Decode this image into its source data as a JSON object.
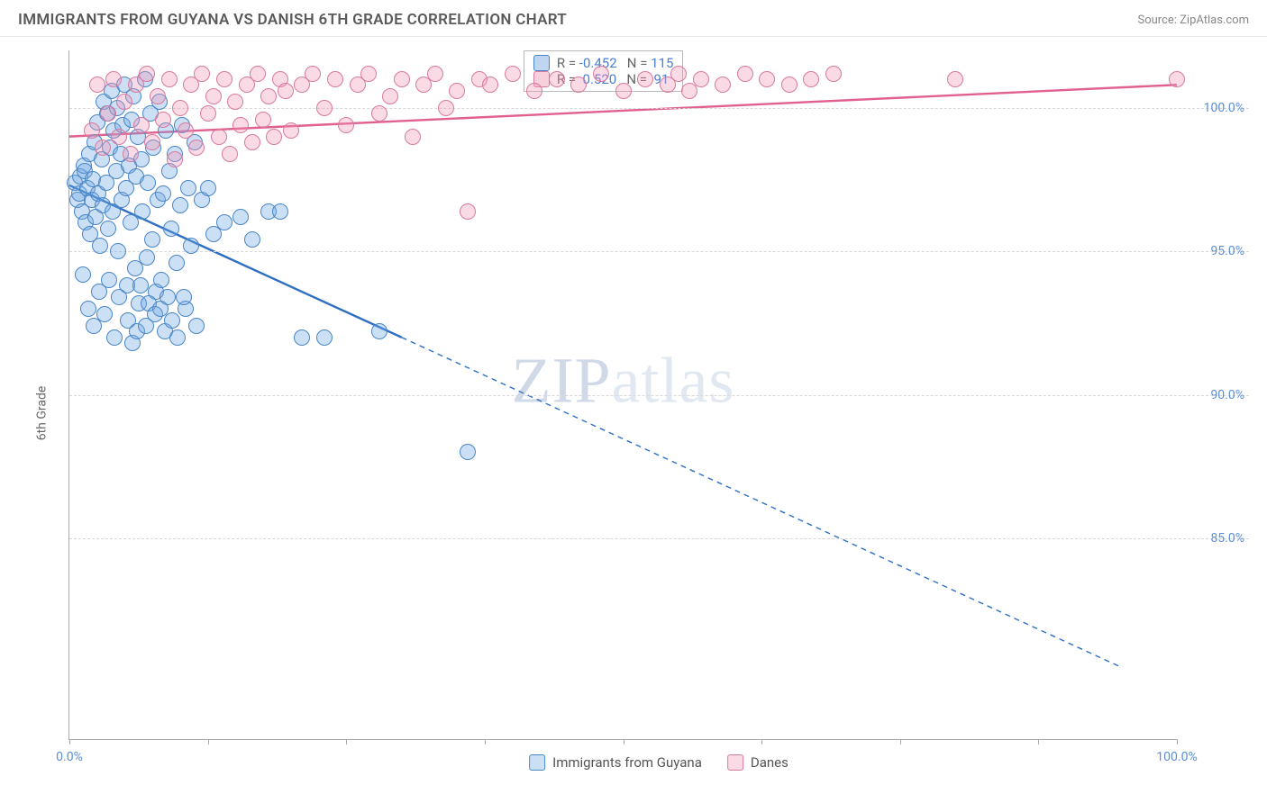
{
  "header": {
    "title": "IMMIGRANTS FROM GUYANA VS DANISH 6TH GRADE CORRELATION CHART",
    "source_prefix": "Source: ",
    "source_name": "ZipAtlas.com"
  },
  "axes": {
    "y_label": "6th Grade",
    "x_min": 0,
    "x_max": 100,
    "y_min": 78,
    "y_max": 102,
    "y_ticks": [
      85.0,
      90.0,
      95.0,
      100.0
    ],
    "y_tick_labels": [
      "85.0%",
      "90.0%",
      "95.0%",
      "100.0%"
    ],
    "x_ticks": [
      0,
      12.5,
      25,
      37.5,
      50,
      62.5,
      75,
      87.5,
      100
    ],
    "x_tick_labels": {
      "0": "0.0%",
      "100": "100.0%"
    }
  },
  "series": {
    "guyana": {
      "label": "Immigrants from Guyana",
      "color_fill": "rgba(110,165,225,0.35)",
      "color_stroke": "#4a86c7",
      "marker_radius": 9,
      "R": "-0.452",
      "N": "115",
      "trend": {
        "x1": 0,
        "y1": 97.3,
        "x2_solid": 30,
        "y2_solid": 92.0,
        "x2": 95,
        "y2": 80.5,
        "stroke": "#2f6fc2",
        "width": 2.4
      },
      "points": [
        [
          0.5,
          97.4
        ],
        [
          0.7,
          96.8
        ],
        [
          0.9,
          97.0
        ],
        [
          1.0,
          97.6
        ],
        [
          1.1,
          96.4
        ],
        [
          1.3,
          98.0
        ],
        [
          1.4,
          97.8
        ],
        [
          1.5,
          96.0
        ],
        [
          1.6,
          97.2
        ],
        [
          1.8,
          98.4
        ],
        [
          1.9,
          95.6
        ],
        [
          2.0,
          96.8
        ],
        [
          2.1,
          97.5
        ],
        [
          2.3,
          98.8
        ],
        [
          2.4,
          96.2
        ],
        [
          2.5,
          99.5
        ],
        [
          2.6,
          97.0
        ],
        [
          2.8,
          95.2
        ],
        [
          2.9,
          98.2
        ],
        [
          3.0,
          96.6
        ],
        [
          3.1,
          100.2
        ],
        [
          3.3,
          97.4
        ],
        [
          3.4,
          99.8
        ],
        [
          3.5,
          95.8
        ],
        [
          3.7,
          98.6
        ],
        [
          3.8,
          100.6
        ],
        [
          3.9,
          96.4
        ],
        [
          4.0,
          99.2
        ],
        [
          4.2,
          97.8
        ],
        [
          4.3,
          100.0
        ],
        [
          4.4,
          95.0
        ],
        [
          4.6,
          98.4
        ],
        [
          4.7,
          96.8
        ],
        [
          4.8,
          99.4
        ],
        [
          5.0,
          100.8
        ],
        [
          5.1,
          97.2
        ],
        [
          5.2,
          93.8
        ],
        [
          5.4,
          98.0
        ],
        [
          5.5,
          96.0
        ],
        [
          5.6,
          99.6
        ],
        [
          5.8,
          100.4
        ],
        [
          5.9,
          94.4
        ],
        [
          6.0,
          97.6
        ],
        [
          6.2,
          99.0
        ],
        [
          6.3,
          93.2
        ],
        [
          6.5,
          98.2
        ],
        [
          6.6,
          96.4
        ],
        [
          6.8,
          101.0
        ],
        [
          7.0,
          94.8
        ],
        [
          7.1,
          97.4
        ],
        [
          7.3,
          99.8
        ],
        [
          7.5,
          95.4
        ],
        [
          7.6,
          98.6
        ],
        [
          7.8,
          93.6
        ],
        [
          8.0,
          96.8
        ],
        [
          8.1,
          100.2
        ],
        [
          8.3,
          94.0
        ],
        [
          8.5,
          97.0
        ],
        [
          8.7,
          99.2
        ],
        [
          8.9,
          93.4
        ],
        [
          9.0,
          97.8
        ],
        [
          9.2,
          95.8
        ],
        [
          9.5,
          98.4
        ],
        [
          9.7,
          94.6
        ],
        [
          10.0,
          96.6
        ],
        [
          10.2,
          99.4
        ],
        [
          10.5,
          93.0
        ],
        [
          10.7,
          97.2
        ],
        [
          11.0,
          95.2
        ],
        [
          11.3,
          98.8
        ],
        [
          1.2,
          94.2
        ],
        [
          1.7,
          93.0
        ],
        [
          2.2,
          92.4
        ],
        [
          2.7,
          93.6
        ],
        [
          3.2,
          92.8
        ],
        [
          3.6,
          94.0
        ],
        [
          4.1,
          92.0
        ],
        [
          4.5,
          93.4
        ],
        [
          5.3,
          92.6
        ],
        [
          5.7,
          91.8
        ],
        [
          6.1,
          92.2
        ],
        [
          6.4,
          93.8
        ],
        [
          6.9,
          92.4
        ],
        [
          7.2,
          93.2
        ],
        [
          7.7,
          92.8
        ],
        [
          8.2,
          93.0
        ],
        [
          8.6,
          92.2
        ],
        [
          9.3,
          92.6
        ],
        [
          9.8,
          92.0
        ],
        [
          10.3,
          93.4
        ],
        [
          11.5,
          92.4
        ],
        [
          12.0,
          96.8
        ],
        [
          12.5,
          97.2
        ],
        [
          13.0,
          95.6
        ],
        [
          14.0,
          96.0
        ],
        [
          15.5,
          96.2
        ],
        [
          16.5,
          95.4
        ],
        [
          18.0,
          96.4
        ],
        [
          19.0,
          96.4
        ],
        [
          21.0,
          92.0
        ],
        [
          23.0,
          92.0
        ],
        [
          28.0,
          92.2
        ],
        [
          36.0,
          88.0
        ]
      ]
    },
    "danes": {
      "label": "Danes",
      "color_fill": "rgba(240,150,180,0.35)",
      "color_stroke": "#d87aa0",
      "marker_radius": 9,
      "R": "0.520",
      "N": "91",
      "trend": {
        "x1": 0,
        "y1": 99.0,
        "x2_solid": 100,
        "y2_solid": 100.8,
        "x2": 100,
        "y2": 100.8,
        "stroke": "#e06090",
        "width": 2.4
      },
      "points": [
        [
          2.0,
          99.2
        ],
        [
          2.5,
          100.8
        ],
        [
          3.0,
          98.6
        ],
        [
          3.5,
          99.8
        ],
        [
          4.0,
          101.0
        ],
        [
          4.5,
          99.0
        ],
        [
          5.0,
          100.2
        ],
        [
          5.5,
          98.4
        ],
        [
          6.0,
          100.8
        ],
        [
          6.5,
          99.4
        ],
        [
          7.0,
          101.2
        ],
        [
          7.5,
          98.8
        ],
        [
          8.0,
          100.4
        ],
        [
          8.5,
          99.6
        ],
        [
          9.0,
          101.0
        ],
        [
          9.5,
          98.2
        ],
        [
          10.0,
          100.0
        ],
        [
          10.5,
          99.2
        ],
        [
          11.0,
          100.8
        ],
        [
          11.5,
          98.6
        ],
        [
          12.0,
          101.2
        ],
        [
          12.5,
          99.8
        ],
        [
          13.0,
          100.4
        ],
        [
          13.5,
          99.0
        ],
        [
          14.0,
          101.0
        ],
        [
          14.5,
          98.4
        ],
        [
          15.0,
          100.2
        ],
        [
          15.5,
          99.4
        ],
        [
          16.0,
          100.8
        ],
        [
          16.5,
          98.8
        ],
        [
          17.0,
          101.2
        ],
        [
          17.5,
          99.6
        ],
        [
          18.0,
          100.4
        ],
        [
          18.5,
          99.0
        ],
        [
          19.0,
          101.0
        ],
        [
          19.5,
          100.6
        ],
        [
          20.0,
          99.2
        ],
        [
          21.0,
          100.8
        ],
        [
          22.0,
          101.2
        ],
        [
          23.0,
          100.0
        ],
        [
          24.0,
          101.0
        ],
        [
          25.0,
          99.4
        ],
        [
          26.0,
          100.8
        ],
        [
          27.0,
          101.2
        ],
        [
          28.0,
          99.8
        ],
        [
          29.0,
          100.4
        ],
        [
          30.0,
          101.0
        ],
        [
          31.0,
          99.0
        ],
        [
          32.0,
          100.8
        ],
        [
          33.0,
          101.2
        ],
        [
          34.0,
          100.0
        ],
        [
          35.0,
          100.6
        ],
        [
          36.0,
          96.4
        ],
        [
          37.0,
          101.0
        ],
        [
          38.0,
          100.8
        ],
        [
          40.0,
          101.2
        ],
        [
          42.0,
          100.6
        ],
        [
          44.0,
          101.0
        ],
        [
          46.0,
          100.8
        ],
        [
          48.0,
          101.2
        ],
        [
          50.0,
          100.6
        ],
        [
          52.0,
          101.0
        ],
        [
          54.0,
          100.8
        ],
        [
          55.0,
          101.2
        ],
        [
          56.0,
          100.6
        ],
        [
          57.0,
          101.0
        ],
        [
          59.0,
          100.8
        ],
        [
          61.0,
          101.2
        ],
        [
          63.0,
          101.0
        ],
        [
          65.0,
          100.8
        ],
        [
          67.0,
          101.0
        ],
        [
          69.0,
          101.2
        ],
        [
          80.0,
          101.0
        ],
        [
          100.0,
          101.0
        ]
      ]
    }
  },
  "legend_box": {
    "top_left_pct": [
      41,
      0
    ],
    "rows": [
      {
        "swatch_fill": "rgba(110,165,225,0.45)",
        "swatch_stroke": "#4a86c7",
        "R": "-0.452",
        "N": "115"
      },
      {
        "swatch_fill": "rgba(240,150,180,0.45)",
        "swatch_stroke": "#d87aa0",
        "R": " 0.520",
        "N": " 91"
      }
    ],
    "eq_R": "R =",
    "eq_N": "N ="
  },
  "watermark": {
    "zip": "ZIP",
    "atlas": "atlas"
  }
}
